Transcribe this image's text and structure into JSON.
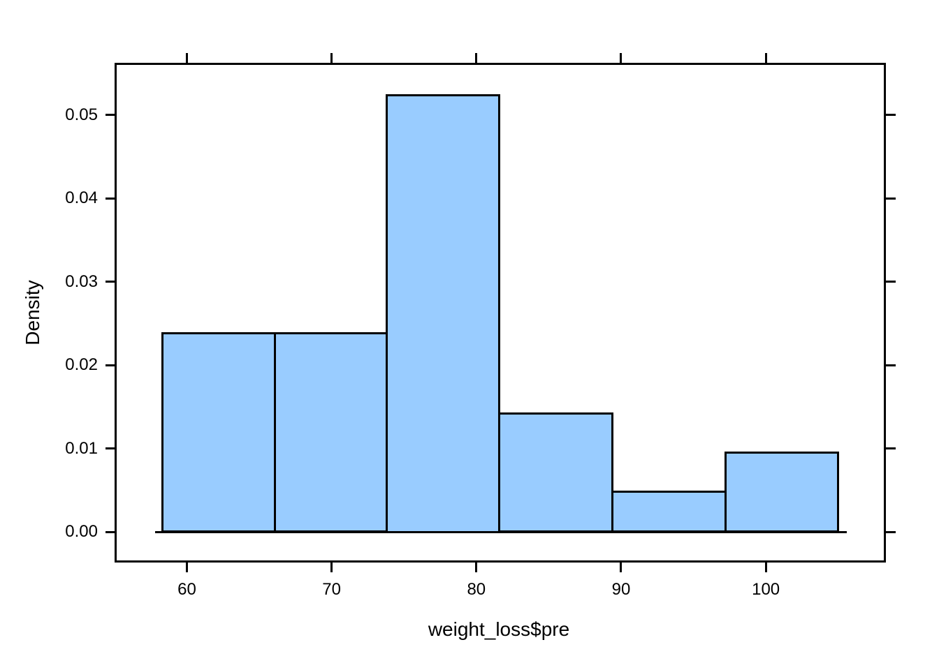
{
  "chart_data": {
    "type": "bar",
    "subtype": "histogram",
    "title": "",
    "xlabel": "weight_loss$pre",
    "ylabel": "Density",
    "bin_edges": [
      58.3,
      66.1,
      73.8,
      81.6,
      89.4,
      97.2,
      105.0
    ],
    "densities": [
      0.0238,
      0.0238,
      0.0524,
      0.0142,
      0.0048,
      0.0095
    ],
    "x_tick_values": [
      60,
      70,
      80,
      90,
      100
    ],
    "x_tick_labels": [
      "60",
      "70",
      "80",
      "90",
      "100"
    ],
    "y_tick_values": [
      0,
      0.01,
      0.02,
      0.03,
      0.04,
      0.05
    ],
    "y_tick_labels": [
      "0.00",
      "0.01",
      "0.02",
      "0.03",
      "0.04",
      "0.05"
    ],
    "xlim": [
      55.1,
      108.2
    ],
    "ylim": [
      -0.0036,
      0.0561
    ],
    "grid": false,
    "legend_position": "none",
    "ticks_mirrored_top_right": true,
    "baseline_value": 0,
    "baseline_x_extent": [
      57.8,
      105.6
    ],
    "bar_fill_color": "#99CCFF",
    "bar_border_color": "#000000",
    "axis_color": "#000000",
    "text_color": "#000000",
    "background_color": "#FFFFFF"
  }
}
